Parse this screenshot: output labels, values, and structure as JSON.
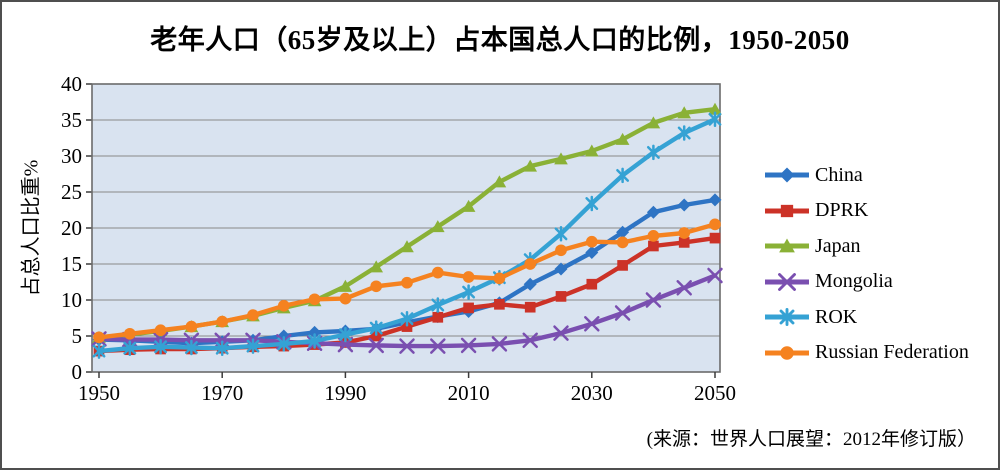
{
  "title": "老年人口（65岁及以上）占本国总人口的比例，1950-2050",
  "source_note": "(来源：世界人口展望：2012年修订版）",
  "colors": {
    "plot_background": "#d9e3f0",
    "gridline": "#898989",
    "plot_border": "#6b6b6b",
    "tick": "#3a3a3a"
  },
  "chart_data": {
    "type": "line",
    "title": "老年人口（65岁及以上）占本国总人口的比例，1950-2050",
    "xlabel": "",
    "ylabel": "占总人口比重%",
    "ylim": [
      0,
      40
    ],
    "y_tick_step": 5,
    "grid": "horizontal",
    "legend_position": "right",
    "x": [
      1950,
      1955,
      1960,
      1965,
      1970,
      1975,
      1980,
      1985,
      1990,
      1995,
      2000,
      2005,
      2010,
      2015,
      2020,
      2025,
      2030,
      2035,
      2040,
      2045,
      2050
    ],
    "x_tick_labels": [
      "1950",
      "1970",
      "1990",
      "2010",
      "2030",
      "2050"
    ],
    "series": [
      {
        "name": "China",
        "color": "#2e74c4",
        "marker": "diamond",
        "values": [
          4.5,
          4.4,
          4.2,
          4.0,
          4.2,
          4.4,
          5.0,
          5.5,
          5.7,
          6.0,
          6.9,
          7.7,
          8.4,
          9.6,
          12.2,
          14.3,
          16.6,
          19.4,
          22.2,
          23.2,
          23.9
        ]
      },
      {
        "name": "DPRK",
        "color": "#cc3227",
        "marker": "square",
        "values": [
          2.9,
          3.1,
          3.2,
          3.2,
          3.3,
          3.5,
          3.6,
          3.8,
          4.1,
          5.0,
          6.3,
          7.6,
          8.9,
          9.4,
          9.0,
          10.5,
          12.2,
          14.8,
          17.5,
          18.0,
          18.6
        ]
      },
      {
        "name": "Japan",
        "color": "#8ab136",
        "marker": "triangle",
        "values": [
          4.8,
          5.2,
          5.7,
          6.3,
          7.0,
          7.8,
          8.9,
          9.9,
          11.9,
          14.6,
          17.4,
          20.2,
          23.0,
          26.4,
          28.6,
          29.6,
          30.7,
          32.3,
          34.6,
          36.0,
          36.5
        ]
      },
      {
        "name": "Mongolia",
        "color": "#7a4fb0",
        "marker": "x",
        "values": [
          4.6,
          4.5,
          4.5,
          4.4,
          4.4,
          4.4,
          4.2,
          4.0,
          3.8,
          3.7,
          3.6,
          3.6,
          3.7,
          3.9,
          4.4,
          5.4,
          6.7,
          8.2,
          10.0,
          11.7,
          13.4
        ]
      },
      {
        "name": "ROK",
        "color": "#35a2d4",
        "marker": "asterisk",
        "values": [
          2.9,
          3.3,
          3.5,
          3.4,
          3.3,
          3.6,
          3.9,
          4.3,
          5.2,
          6.1,
          7.4,
          9.3,
          11.1,
          13.1,
          15.6,
          19.2,
          23.4,
          27.3,
          30.5,
          33.2,
          35.1
        ]
      },
      {
        "name": "Russian Federation",
        "color": "#f58220",
        "marker": "circle",
        "values": [
          4.8,
          5.3,
          5.8,
          6.3,
          7.0,
          7.9,
          9.2,
          10.1,
          10.2,
          11.9,
          12.4,
          13.8,
          13.2,
          13.0,
          15.0,
          16.9,
          18.1,
          18.0,
          18.9,
          19.3,
          20.5
        ]
      }
    ]
  }
}
